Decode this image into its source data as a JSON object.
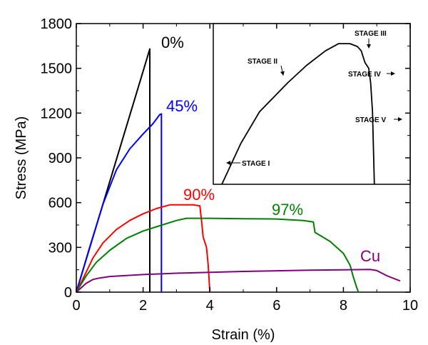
{
  "chart_data": {
    "type": "line",
    "title": "",
    "xlabel": "Strain (%)",
    "ylabel": "Stress (MPa)",
    "xlim": [
      0,
      10
    ],
    "ylim": [
      0,
      1800
    ],
    "xticks": [
      "0",
      "2",
      "4",
      "6",
      "8",
      "10"
    ],
    "yticks": [
      "0",
      "300",
      "600",
      "900",
      "1200",
      "1500",
      "1800"
    ],
    "grid": false,
    "series": [
      {
        "name": "0%",
        "color": "#000000",
        "x": [
          0,
          0.5,
          1.0,
          1.5,
          2.0,
          2.2,
          2.2
        ],
        "y": [
          0,
          370,
          740,
          1110,
          1480,
          1630,
          0
        ]
      },
      {
        "name": "45%",
        "color": "#0000ff",
        "x": [
          0,
          0.4,
          0.8,
          1.2,
          1.6,
          2.0,
          2.3,
          2.5,
          2.55,
          2.55
        ],
        "y": [
          0,
          300,
          590,
          820,
          960,
          1060,
          1130,
          1190,
          1195,
          0
        ]
      },
      {
        "name": "90%",
        "color": "#ff0000",
        "x": [
          0,
          0.2,
          0.5,
          0.8,
          1.2,
          1.6,
          2.0,
          2.4,
          2.8,
          3.2,
          3.5,
          3.7,
          3.75,
          3.8,
          3.9,
          3.95,
          4.0
        ],
        "y": [
          0,
          90,
          230,
          330,
          420,
          480,
          525,
          560,
          585,
          585,
          585,
          578,
          480,
          370,
          300,
          180,
          0
        ]
      },
      {
        "name": "97%",
        "color": "#008000",
        "x": [
          0,
          0.3,
          0.6,
          1.0,
          1.5,
          2.0,
          2.5,
          3.0,
          3.3,
          4.0,
          5.0,
          6.0,
          6.8,
          7.1,
          7.15,
          7.6,
          8.0,
          8.2,
          8.3,
          8.4,
          8.45
        ],
        "y": [
          0,
          110,
          200,
          280,
          360,
          410,
          445,
          480,
          495,
          495,
          492,
          490,
          480,
          470,
          400,
          340,
          260,
          180,
          100,
          30,
          0
        ]
      },
      {
        "name": "Cu",
        "color": "#800080",
        "x": [
          0,
          0.15,
          0.3,
          0.5,
          0.7,
          1.0,
          2.0,
          3.0,
          4.0,
          5.0,
          6.0,
          7.0,
          8.0,
          8.8,
          9.0,
          9.3,
          9.7
        ],
        "y": [
          0,
          30,
          60,
          85,
          95,
          105,
          118,
          127,
          133,
          139,
          143,
          147,
          150,
          152,
          145,
          110,
          75
        ]
      }
    ],
    "inset": {
      "series": {
        "color": "#000000",
        "x": [
          0,
          5,
          10,
          20,
          35,
          45,
          55,
          62,
          66,
          68,
          70,
          72,
          74,
          76,
          78,
          79,
          80,
          81
        ],
        "y": [
          0,
          14,
          28,
          50,
          70,
          82,
          92,
          97,
          97,
          97,
          96,
          95,
          92,
          84,
          80,
          70,
          50,
          0
        ]
      },
      "annotations": [
        {
          "text": "STAGE I",
          "x": 9,
          "y": 20
        },
        {
          "text": "STAGE II",
          "x": 35,
          "y": 84
        },
        {
          "text": "STAGE III",
          "x": 67,
          "y": 98
        },
        {
          "text": "STAGE IV",
          "x": 74,
          "y": 80
        },
        {
          "text": "STAGE V",
          "x": 80,
          "y": 62
        }
      ]
    }
  }
}
